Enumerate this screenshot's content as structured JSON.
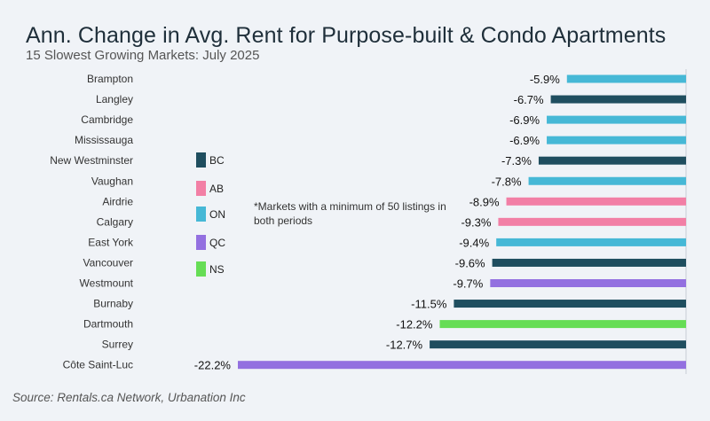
{
  "chart_data": {
    "type": "bar",
    "orientation": "horizontal",
    "title": "Ann. Change in Avg. Rent for Purpose-built & Condo Apartments",
    "subtitle": "15 Slowest Growing Markets: July 2025",
    "xlim": [
      -22.2,
      0
    ],
    "categories": [
      "Brampton",
      "Langley",
      "Cambridge",
      "Mississauga",
      "New Westminster",
      "Vaughan",
      "Airdrie",
      "Calgary",
      "East York",
      "Vancouver",
      "Westmount",
      "Burnaby",
      "Dartmouth",
      "Surrey",
      "Côte Saint-Luc"
    ],
    "values": [
      -5.9,
      -6.7,
      -6.9,
      -6.9,
      -7.3,
      -7.8,
      -8.9,
      -9.3,
      -9.4,
      -9.6,
      -9.7,
      -11.5,
      -12.2,
      -12.7,
      -22.2
    ],
    "value_labels": [
      "-5.9%",
      "-6.7%",
      "-6.9%",
      "-6.9%",
      "-7.3%",
      "-7.8%",
      "-8.9%",
      "-9.3%",
      "-9.4%",
      "-9.6%",
      "-9.7%",
      "-11.5%",
      "-12.2%",
      "-12.7%",
      "-22.2%"
    ],
    "provinces": [
      "ON",
      "BC",
      "ON",
      "ON",
      "BC",
      "ON",
      "AB",
      "AB",
      "ON",
      "BC",
      "QC",
      "BC",
      "NS",
      "BC",
      "QC"
    ],
    "legend": [
      {
        "label": "BC",
        "color": "#1f4e5f"
      },
      {
        "label": "AB",
        "color": "#f27fa5"
      },
      {
        "label": "ON",
        "color": "#46b8d6"
      },
      {
        "label": "QC",
        "color": "#9370e0"
      },
      {
        "label": "NS",
        "color": "#66dd55"
      }
    ],
    "note": "*Markets with a minimum of 50 listings in both periods",
    "source": "Source: Rentals.ca Network, Urbanation Inc"
  }
}
